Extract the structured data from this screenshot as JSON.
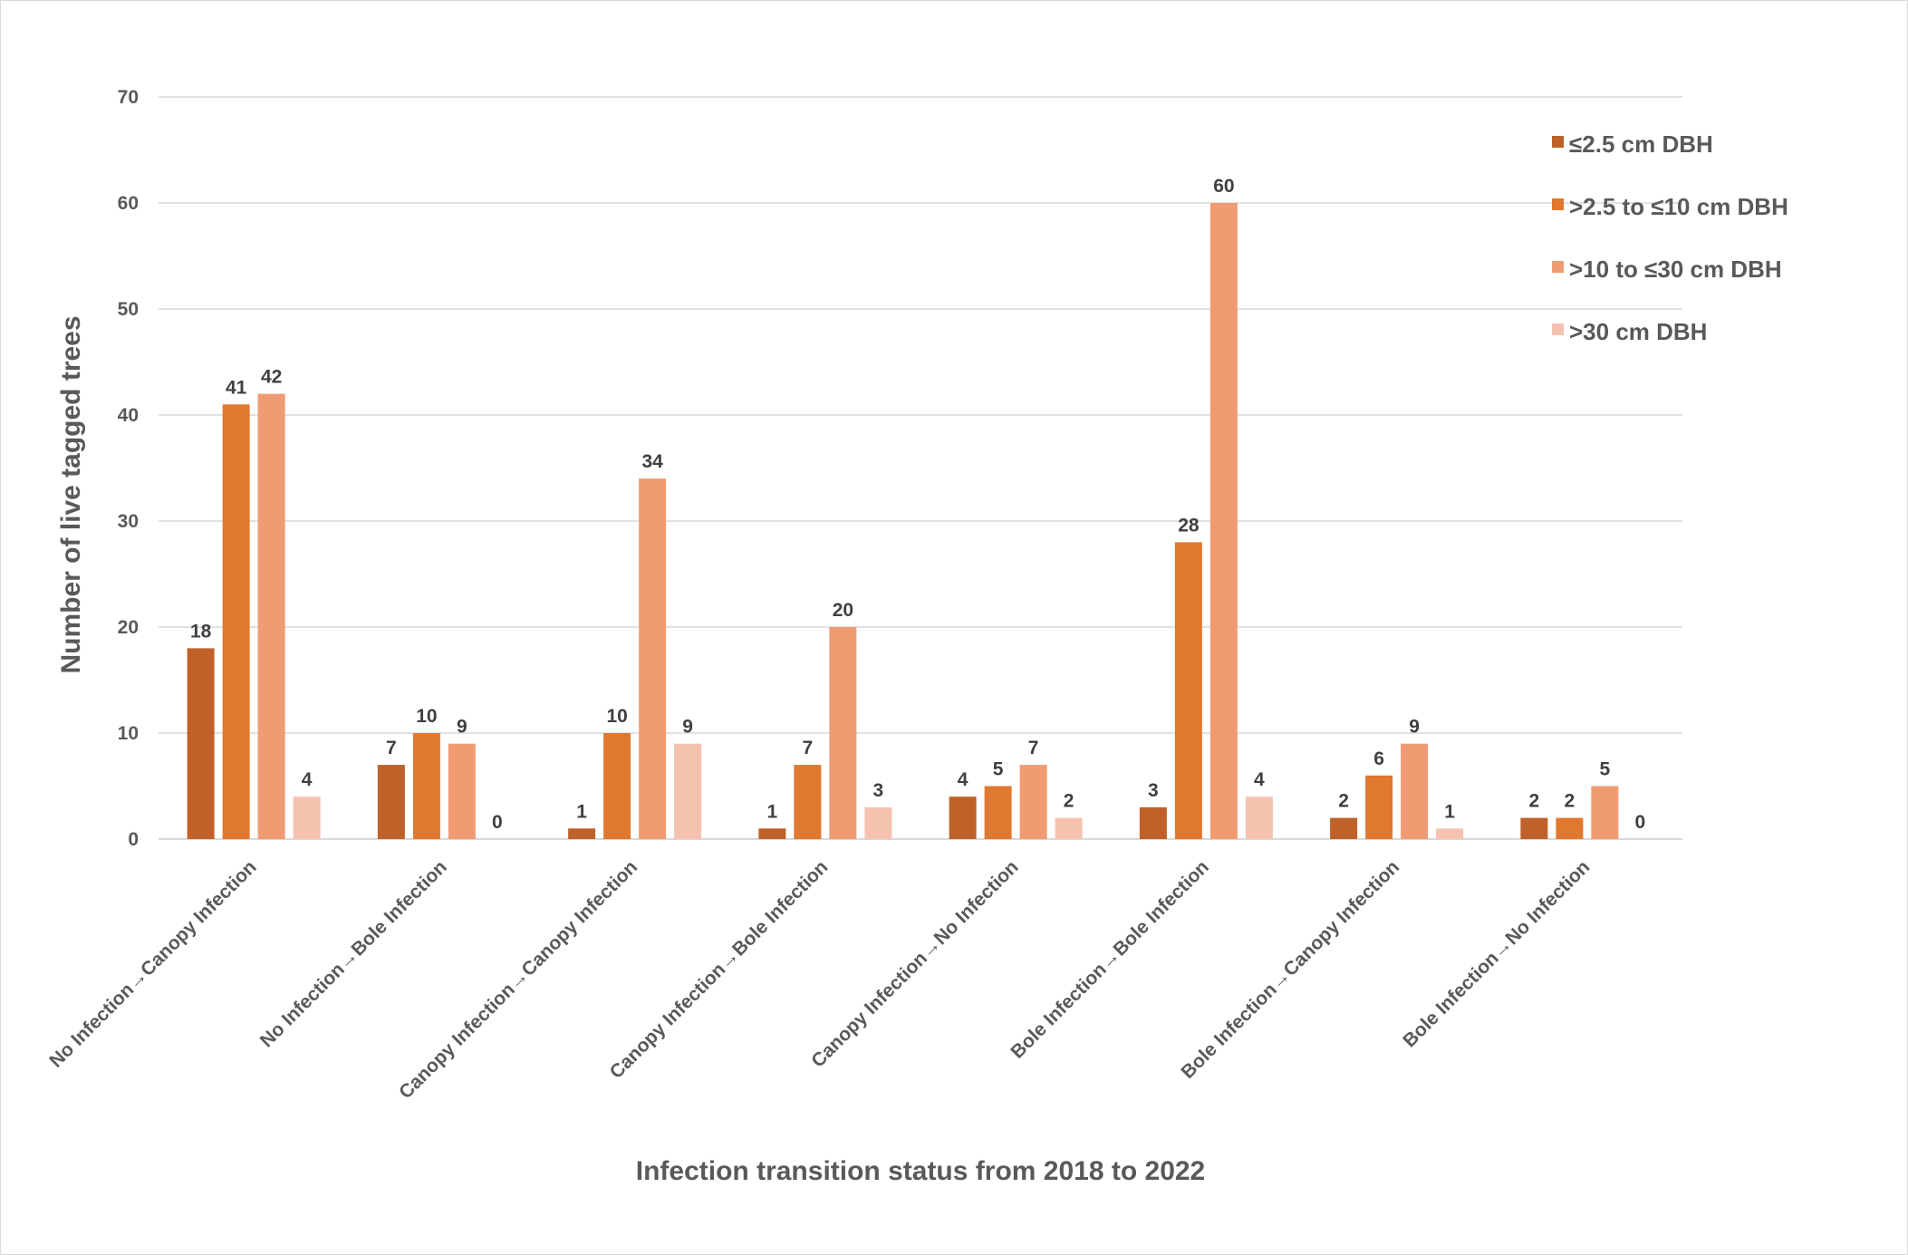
{
  "chart_data": {
    "type": "bar",
    "title": "",
    "xlabel": "Infection transition status from 2018 to 2022",
    "ylabel": "Number of live tagged trees",
    "ylim": [
      0,
      70
    ],
    "yticks": [
      0,
      10,
      20,
      30,
      40,
      50,
      60,
      70
    ],
    "grid": true,
    "legend_position": "right",
    "categories": [
      "No Infection→Canopy Infection",
      "No Infection→Bole Infection",
      "Canopy Infection→Canopy Infection",
      "Canopy Infection→Bole Infection",
      "Canopy Infection→No Infection",
      "Bole Infection→Bole Infection",
      "Bole Infection→Canopy Infection",
      "Bole Infection→No Infection"
    ],
    "series": [
      {
        "name": "≤2.5 cm DBH",
        "color": "#bf6128",
        "values": [
          18,
          7,
          1,
          1,
          4,
          3,
          2,
          2
        ]
      },
      {
        "name": ">2.5 to ≤10 cm DBH",
        "color": "#e07830",
        "values": [
          41,
          10,
          10,
          7,
          5,
          28,
          6,
          2
        ]
      },
      {
        "name": ">10 to ≤30 cm DBH",
        "color": "#f09b72",
        "values": [
          42,
          9,
          34,
          20,
          7,
          60,
          9,
          5
        ]
      },
      {
        "name": ">30 cm DBH",
        "color": "#f5c2af",
        "values": [
          4,
          0,
          9,
          3,
          2,
          4,
          1,
          0
        ]
      }
    ]
  }
}
